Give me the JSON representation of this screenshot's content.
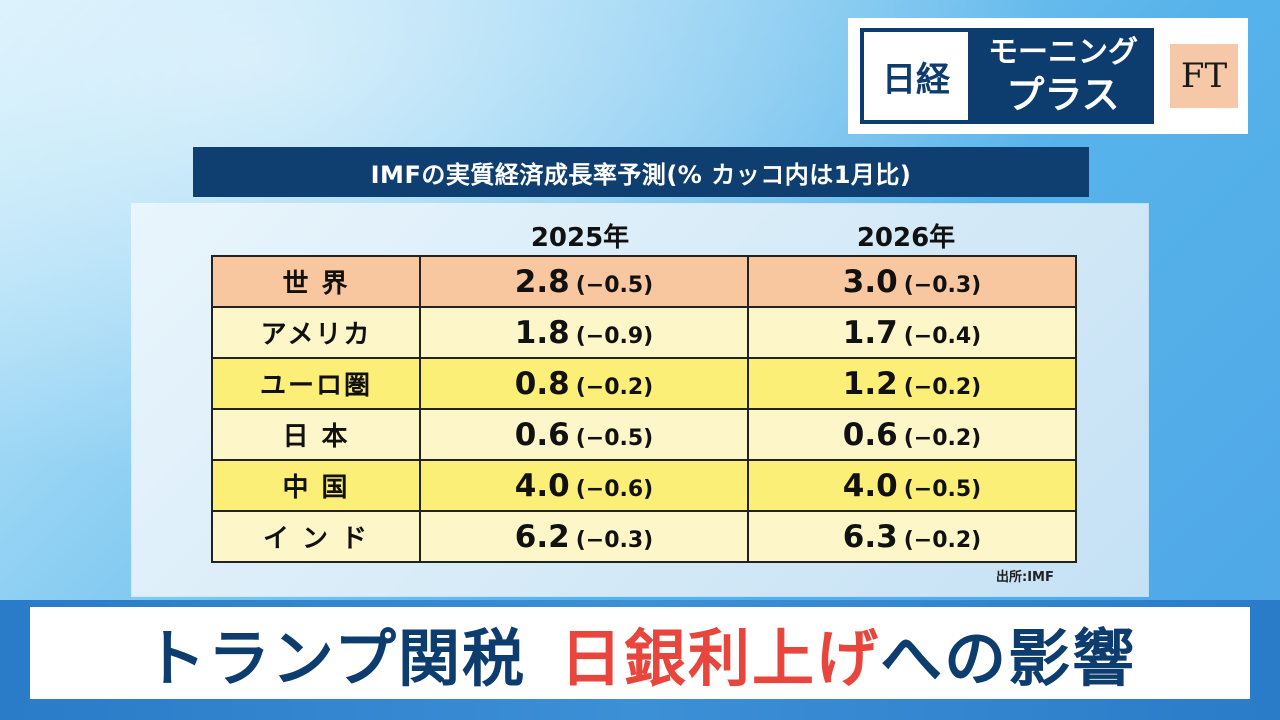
{
  "logo": {
    "nikkei": "日経",
    "show_line1": "モーニング",
    "show_line2": "プラス",
    "ft": "FT"
  },
  "table_title": "IMFの実質経済成長率予測(% カッコ内は1月比)",
  "columns": [
    "2025年",
    "2026年"
  ],
  "rows": [
    {
      "region": "世 界",
      "v2025": "2.8",
      "c2025": "(−0.5)",
      "v2026": "3.0",
      "c2026": "(−0.3)"
    },
    {
      "region": "アメリカ",
      "v2025": "1.8",
      "c2025": "(−0.9)",
      "v2026": "1.7",
      "c2026": "(−0.4)"
    },
    {
      "region": "ユーロ圏",
      "v2025": "0.8",
      "c2025": "(−0.2)",
      "v2026": "1.2",
      "c2026": "(−0.2)"
    },
    {
      "region": "日 本",
      "v2025": "0.6",
      "c2025": "(−0.5)",
      "v2026": "0.6",
      "c2026": "(−0.2)"
    },
    {
      "region": "中 国",
      "v2025": "4.0",
      "c2025": "(−0.6)",
      "v2026": "4.0",
      "c2026": "(−0.5)"
    },
    {
      "region": "イ ン ド",
      "v2025": "6.2",
      "c2025": "(−0.3)",
      "v2026": "6.3",
      "c2026": "(−0.2)"
    }
  ],
  "source": "出所:IMF",
  "banner": {
    "part1": "トランプ関税",
    "part2": "日銀利上げ",
    "part3": "への影響"
  },
  "colors": {
    "navy": "#0d3c6e",
    "accent_red": "#e8453c",
    "world_row": "#f8c79f",
    "light_row": "#fdf6c9",
    "yellow_row": "#fbef78"
  }
}
